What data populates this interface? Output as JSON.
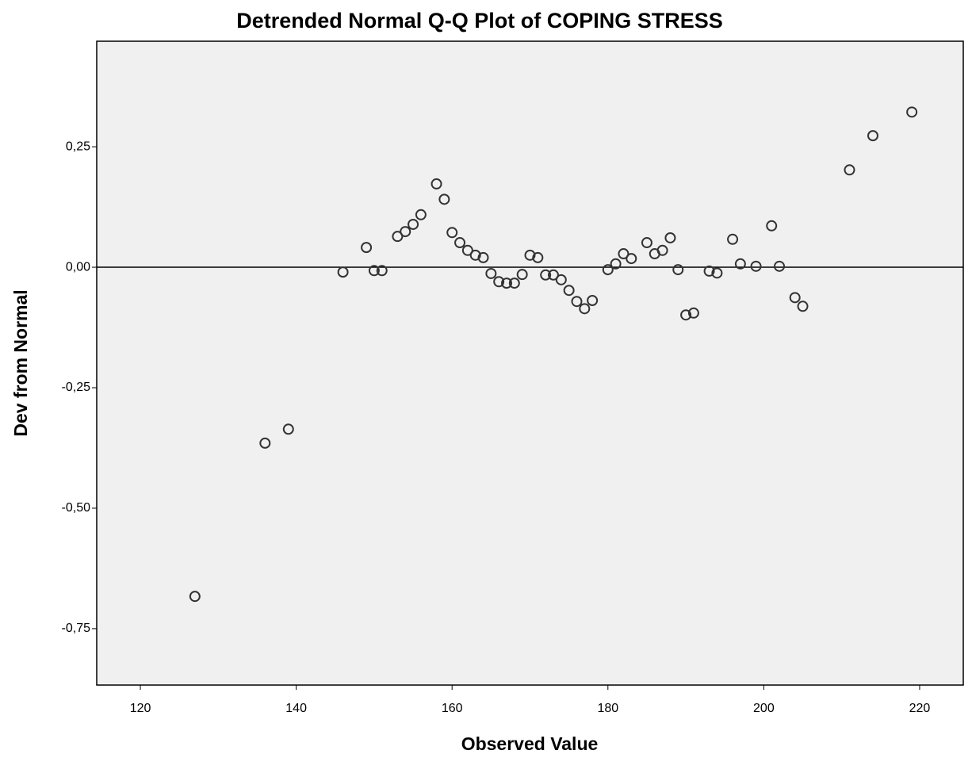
{
  "chart_data": {
    "type": "scatter",
    "title": "Detrended Normal Q-Q Plot of COPING STRESS",
    "x_label": "Observed Value",
    "y_label": "Dev from Normal",
    "xlim": [
      114.4,
      225.6
    ],
    "ylim": [
      -0.867,
      0.469
    ],
    "xticks": [
      120,
      140,
      160,
      180,
      200,
      220
    ],
    "yticks": [
      {
        "value": 0.25,
        "label": "0,25"
      },
      {
        "value": 0,
        "label": "0,00"
      },
      {
        "value": -0.25,
        "label": "-0,25"
      },
      {
        "value": -0.5,
        "label": "-0,50"
      },
      {
        "value": -0.75,
        "label": "-0,75"
      }
    ],
    "reference_line": 0,
    "color": "#333333",
    "background": "#f0f0f0",
    "x": [
      127,
      136,
      139,
      146,
      149,
      150,
      151,
      153,
      154,
      155,
      156,
      158,
      159,
      160,
      161,
      162,
      163,
      164,
      165,
      166,
      167,
      168,
      169,
      170,
      171,
      172,
      173,
      174,
      175,
      176,
      177,
      178,
      180,
      181,
      182,
      183,
      185,
      186,
      187,
      188,
      189,
      190,
      191,
      193,
      194,
      196,
      197,
      199,
      201,
      202,
      204,
      205,
      211,
      214,
      219
    ],
    "values": [
      -0.683,
      -0.365,
      -0.336,
      -0.01,
      0.041,
      -0.007,
      -0.007,
      0.064,
      0.074,
      0.089,
      0.109,
      0.173,
      0.141,
      0.072,
      0.051,
      0.035,
      0.025,
      0.02,
      -0.013,
      -0.03,
      -0.033,
      -0.033,
      -0.015,
      0.025,
      0.02,
      -0.016,
      -0.016,
      -0.026,
      -0.048,
      -0.071,
      -0.086,
      -0.069,
      -0.005,
      0.007,
      0.028,
      0.018,
      0.051,
      0.028,
      0.035,
      0.061,
      -0.005,
      -0.099,
      -0.095,
      -0.008,
      -0.012,
      0.058,
      0.007,
      0.002,
      0.086,
      0.002,
      -0.063,
      -0.081,
      0.202,
      0.273,
      0.322
    ]
  }
}
